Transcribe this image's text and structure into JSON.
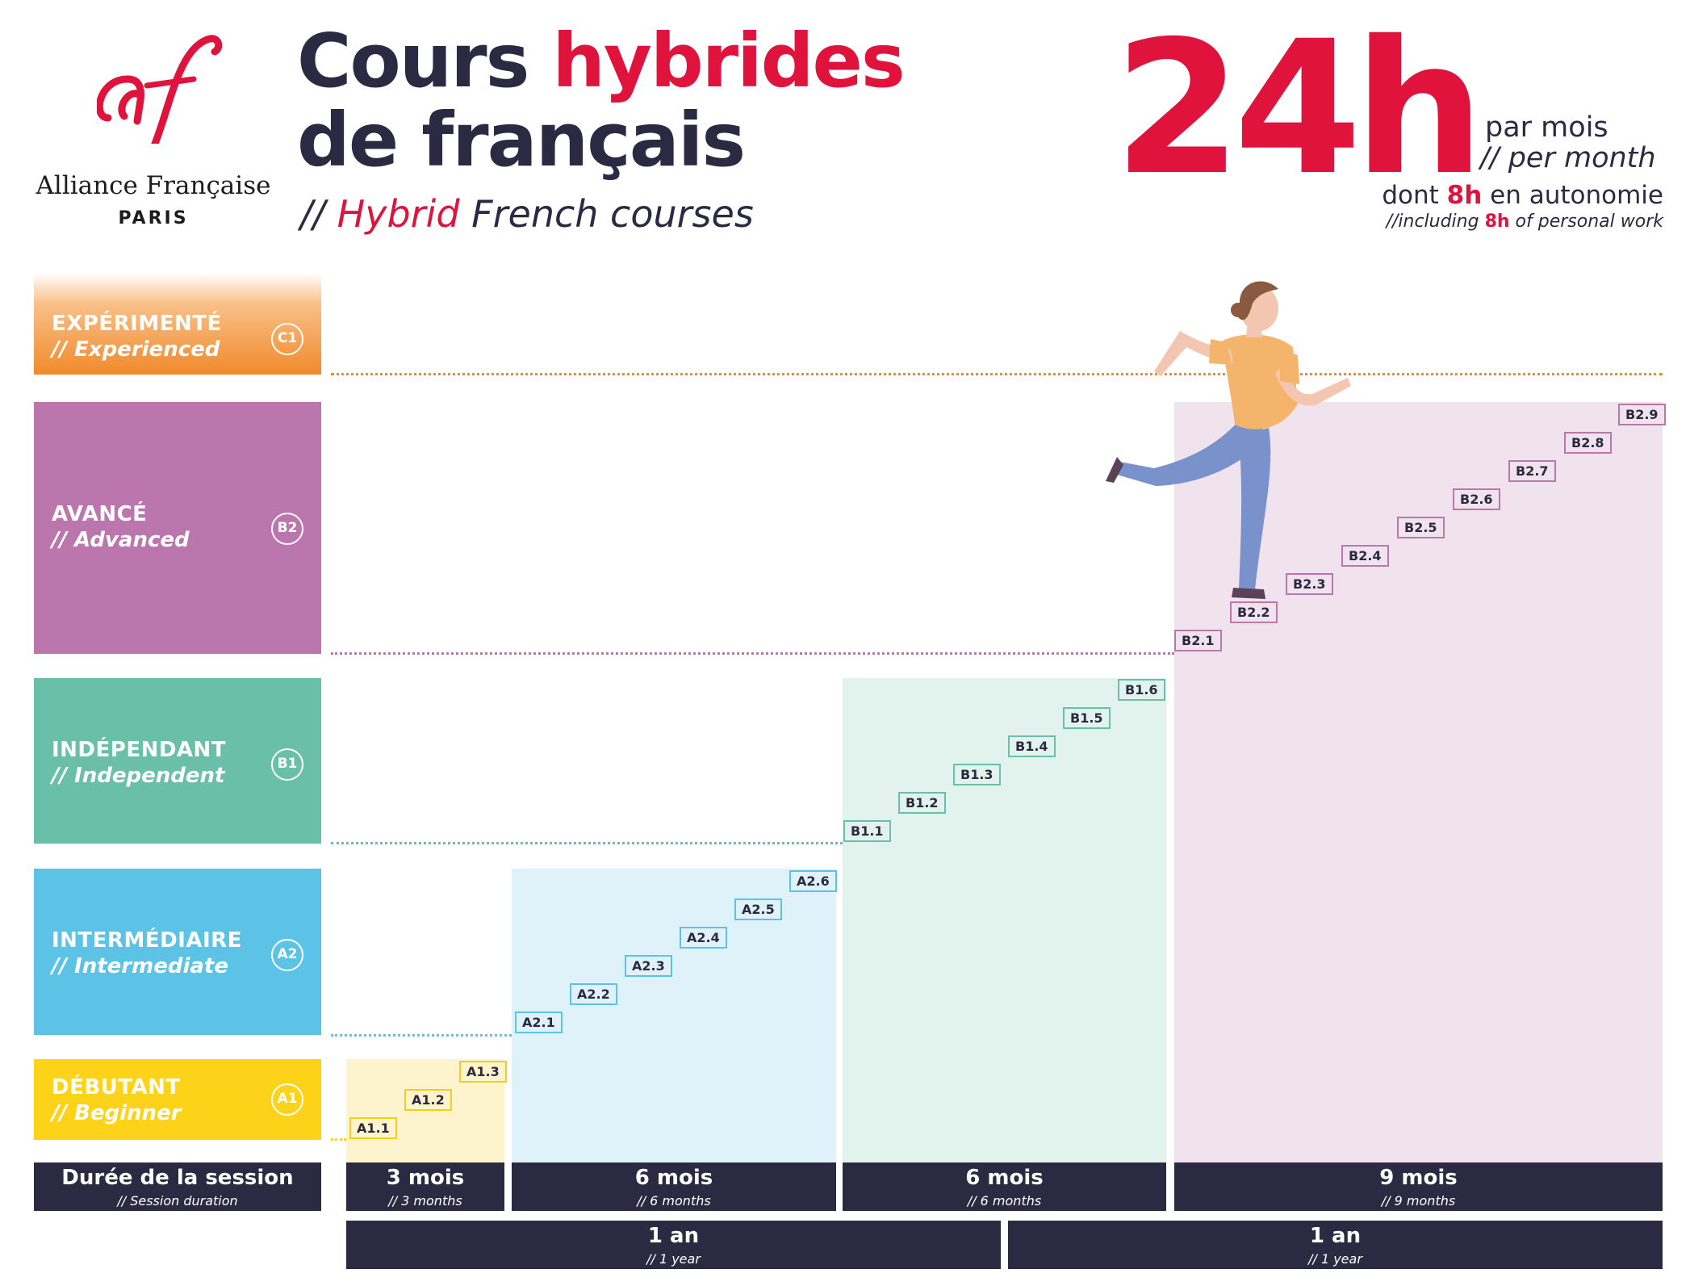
{
  "logo": {
    "mark": "af",
    "name": "Alliance Française",
    "city": "PARIS"
  },
  "title": {
    "line1_a": "Cours ",
    "line1_b": "hybrides",
    "line2": "de français",
    "subtitle_prefix": "// ",
    "subtitle_red": "Hybrid",
    "subtitle_rest": " French courses"
  },
  "hours": {
    "big": "24h",
    "per_fr": "par mois",
    "per_en": "// per month",
    "auto_fr_a": "dont ",
    "auto_fr_b": "8h",
    "auto_fr_c": " en autonomie",
    "auto_en_a": "//including ",
    "auto_en_b": "8h",
    "auto_en_c": " of personal work"
  },
  "levels": [
    {
      "fr": "EXPÉRIMENTÉ",
      "en": "// Experienced",
      "code": "C1",
      "color": "#f08a2b"
    },
    {
      "fr": "AVANCÉ",
      "en": "// Advanced",
      "code": "B2",
      "color": "#bb76ae"
    },
    {
      "fr": "INDÉPENDANT",
      "en": "// Independent",
      "code": "B1",
      "color": "#6abfa8"
    },
    {
      "fr": "INTERMÉDIAIRE",
      "en": "// Intermediate",
      "code": "A2",
      "color": "#5cc3e6"
    },
    {
      "fr": "DÉBUTANT",
      "en": "// Beginner",
      "code": "A1",
      "color": "#fdd31a"
    }
  ],
  "steps": {
    "a1": [
      "A1.1",
      "A1.2",
      "A1.3"
    ],
    "a2": [
      "A2.1",
      "A2.2",
      "A2.3",
      "A2.4",
      "A2.5",
      "A2.6"
    ],
    "b1": [
      "B1.1",
      "B1.2",
      "B1.3",
      "B1.4",
      "B1.5",
      "B1.6"
    ],
    "b2": [
      "B2.1",
      "B2.2",
      "B2.3",
      "B2.4",
      "B2.5",
      "B2.6",
      "B2.7",
      "B2.8",
      "B2.9"
    ]
  },
  "durations": {
    "label_fr": "Durée de la session",
    "label_en": "// Session duration",
    "sessions": [
      {
        "fr": "3 mois",
        "en": "// 3 months"
      },
      {
        "fr": "6 mois",
        "en": "// 6 months"
      },
      {
        "fr": "6 mois",
        "en": "// 6 months"
      },
      {
        "fr": "9 mois",
        "en": "// 9 months"
      }
    ],
    "years": [
      {
        "fr": "1 an",
        "en": "// 1 year"
      },
      {
        "fr": "1 an",
        "en": "// 1 year"
      }
    ]
  }
}
